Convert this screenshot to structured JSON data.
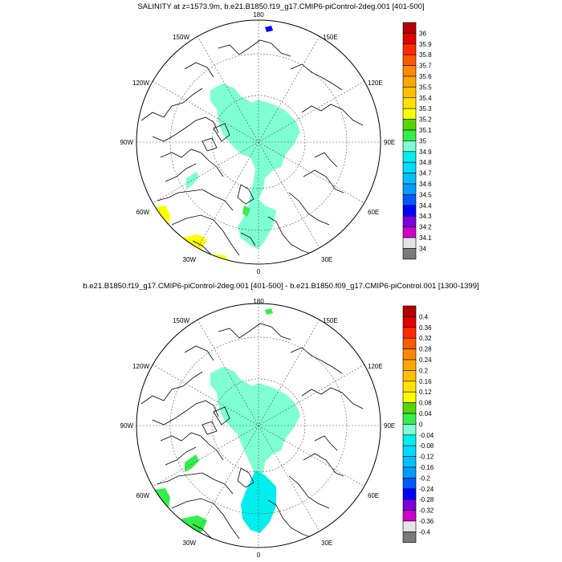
{
  "panel1": {
    "title": "SALINITY at z=1573.9m, b.e21.B1850.f19_g17.CMIP6-piControl-2deg.001 [401-500]",
    "colorbar": {
      "labels": [
        "36",
        "35.9",
        "35.8",
        "35.7",
        "35.6",
        "35.5",
        "35.4",
        "35.3",
        "35.2",
        "35.1",
        "35",
        "34.9",
        "34.8",
        "34.7",
        "34.6",
        "34.5",
        "34.4",
        "34.3",
        "34.2",
        "34.1",
        "34"
      ],
      "colors": [
        "#b40000",
        "#e00000",
        "#ff2a00",
        "#ff5a00",
        "#ff8a00",
        "#ffa600",
        "#ffc000",
        "#ffe300",
        "#ffff00",
        "#56d600",
        "#34ee4a",
        "#7fffd4",
        "#00eeee",
        "#00dcff",
        "#00c0ff",
        "#009cff",
        "#0058ff",
        "#0000ff",
        "#7a00dd",
        "#cc00cc",
        "#e4e4e4",
        "#7a7a7a"
      ]
    }
  },
  "panel2": {
    "title": "b.e21.B1850.f19_g17.CMIP6-piControl-2deg.001 [401-500] - b.e21.B1850.f09_g17.CMIP6-piControl.001 [1300-1399]",
    "colorbar": {
      "labels": [
        "0.4",
        "0.36",
        "0.32",
        "0.28",
        "0.24",
        "0.2",
        "0.16",
        "0.12",
        "0.08",
        "0.04",
        "0",
        "-0.04",
        "-0.08",
        "-0.12",
        "-0.16",
        "-0.2",
        "-0.24",
        "-0.28",
        "-0.32",
        "-0.36",
        "-0.4"
      ],
      "colors": [
        "#b40000",
        "#e00000",
        "#ff2a00",
        "#ff5a00",
        "#ff8a00",
        "#ffa600",
        "#ffc000",
        "#ffe300",
        "#ffff00",
        "#56d600",
        "#34ee4a",
        "#7fffd4",
        "#00eeee",
        "#00dcff",
        "#00c0ff",
        "#009cff",
        "#0058ff",
        "#0000ff",
        "#7a00dd",
        "#cc00cc",
        "#e4e4e4",
        "#7a7a7a"
      ]
    }
  },
  "map_labels": {
    "top": "180",
    "bottom": "0",
    "left": "90W",
    "right": "90E",
    "upper_left": "150W",
    "upper_right": "150E",
    "mid_upper_left": "120W",
    "mid_upper_right": "120E",
    "lower_left": "60W",
    "lower_right": "60E",
    "bottom_left": "30W",
    "bottom_right": "30E"
  }
}
